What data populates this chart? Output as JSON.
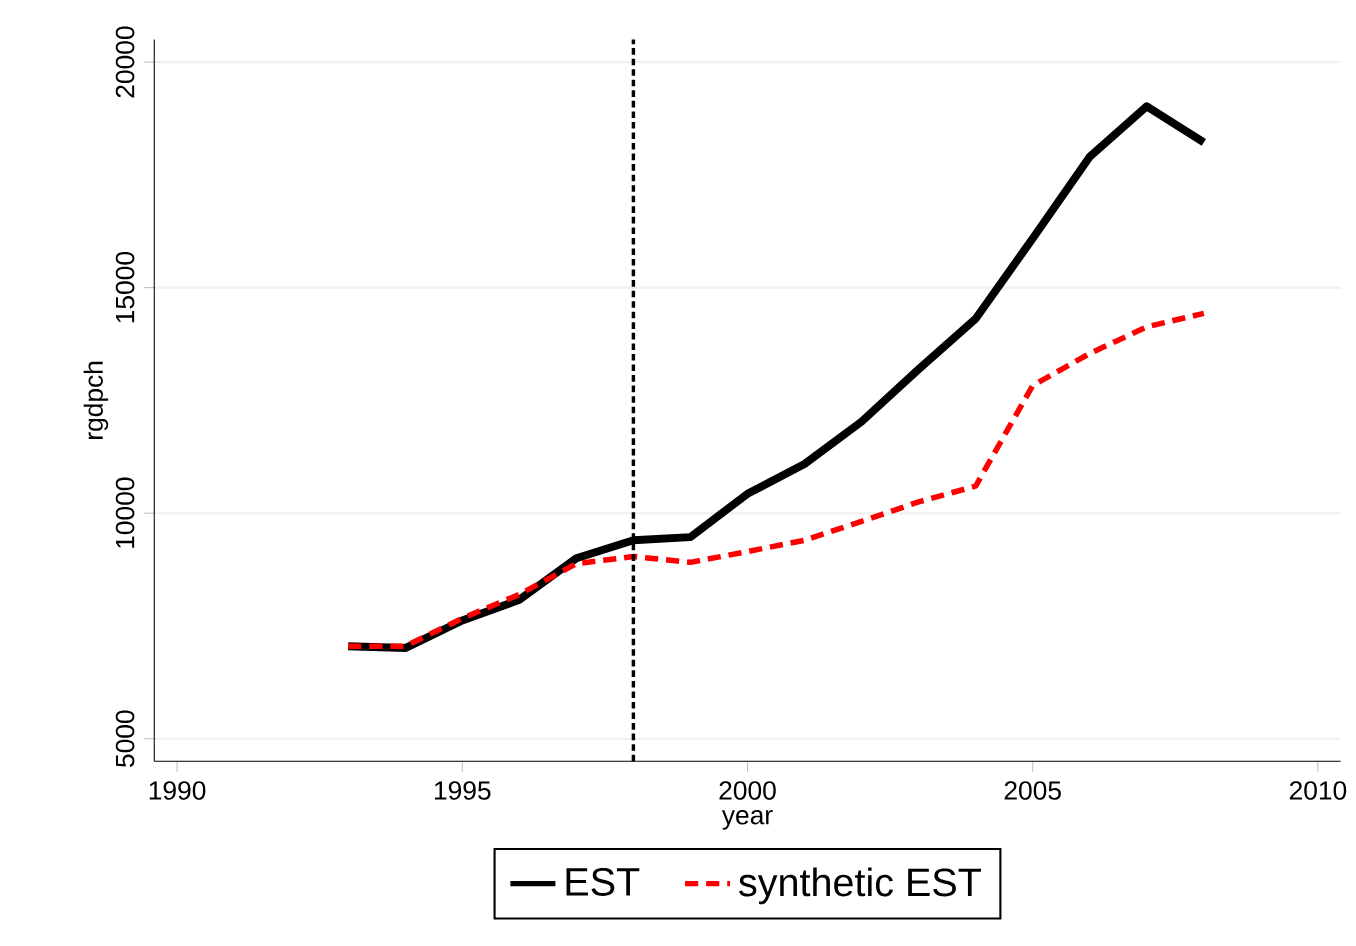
{
  "chart_data": {
    "type": "line",
    "xlabel": "year",
    "ylabel": "rgdpch",
    "x": [
      1993,
      1994,
      1995,
      1996,
      1997,
      1998,
      1999,
      2000,
      2001,
      2002,
      2003,
      2004,
      2005,
      2006,
      2007,
      2008
    ],
    "series": [
      {
        "name": "EST",
        "color": "#000000",
        "line_style": "solid",
        "values": [
          7050,
          7010,
          7620,
          8080,
          9000,
          9400,
          9470,
          10430,
          11090,
          12030,
          13190,
          14310,
          16090,
          17900,
          19020,
          18220
        ]
      },
      {
        "name": "synthetic EST",
        "color": "#ff0000",
        "line_style": "dashed",
        "values": [
          7050,
          7050,
          7670,
          8200,
          8880,
          9040,
          8910,
          9150,
          9400,
          9820,
          10250,
          10600,
          12830,
          13540,
          14130,
          14430
        ]
      }
    ],
    "xlim": [
      1989.6,
      2010.4
    ],
    "ylim": [
      4500,
      20500
    ],
    "xticks": [
      1990,
      1995,
      2000,
      2005,
      2010
    ],
    "yticks": [
      5000,
      10000,
      15000,
      20000
    ],
    "ref_lines": [
      {
        "axis": "x",
        "value": 1998,
        "color": "#000000",
        "line_style": "dashed"
      }
    ],
    "grid": "y",
    "legend": "bottom",
    "marker": "none"
  }
}
